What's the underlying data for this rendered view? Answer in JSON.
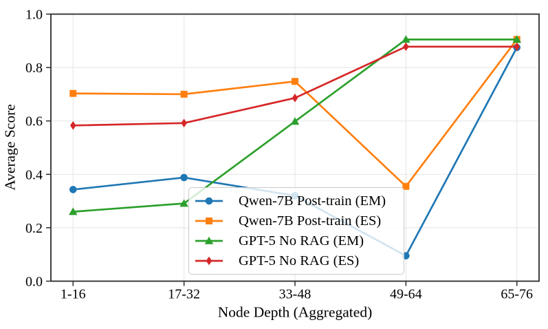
{
  "figure": {
    "background": "#ffffff",
    "spine_color": "#2b2b2b",
    "grid_color": "#e8e8e8",
    "legend_border_color": "#c9c9c9"
  },
  "chart_data": {
    "type": "line",
    "title": "",
    "xlabel": "Node Depth (Aggregated)",
    "ylabel": "Average Score",
    "categories": [
      "1-16",
      "17-32",
      "33-48",
      "49-64",
      "65-76"
    ],
    "ylim": [
      0.0,
      1.0
    ],
    "yticks": [
      "0.0",
      "0.2",
      "0.4",
      "0.6",
      "0.8",
      "1.0"
    ],
    "grid": "on",
    "legend_position": "inside lower-center",
    "series": [
      {
        "name": "Qwen-7B Post-train (EM)",
        "color": "#1f77b4",
        "marker": "circle",
        "values": [
          0.343,
          0.388,
          0.32,
          0.095,
          0.875
        ]
      },
      {
        "name": "Qwen-7B Post-train (ES)",
        "color": "#ff7f0e",
        "marker": "square",
        "values": [
          0.703,
          0.7,
          0.748,
          0.355,
          0.905
        ]
      },
      {
        "name": "GPT-5 No RAG (EM)",
        "color": "#2ca02c",
        "marker": "triangle",
        "values": [
          0.26,
          0.291,
          0.598,
          0.905,
          0.905
        ]
      },
      {
        "name": "GPT-5 No RAG (ES)",
        "color": "#d62728",
        "marker": "diamond",
        "values": [
          0.583,
          0.592,
          0.686,
          0.878,
          0.878
        ]
      }
    ]
  }
}
